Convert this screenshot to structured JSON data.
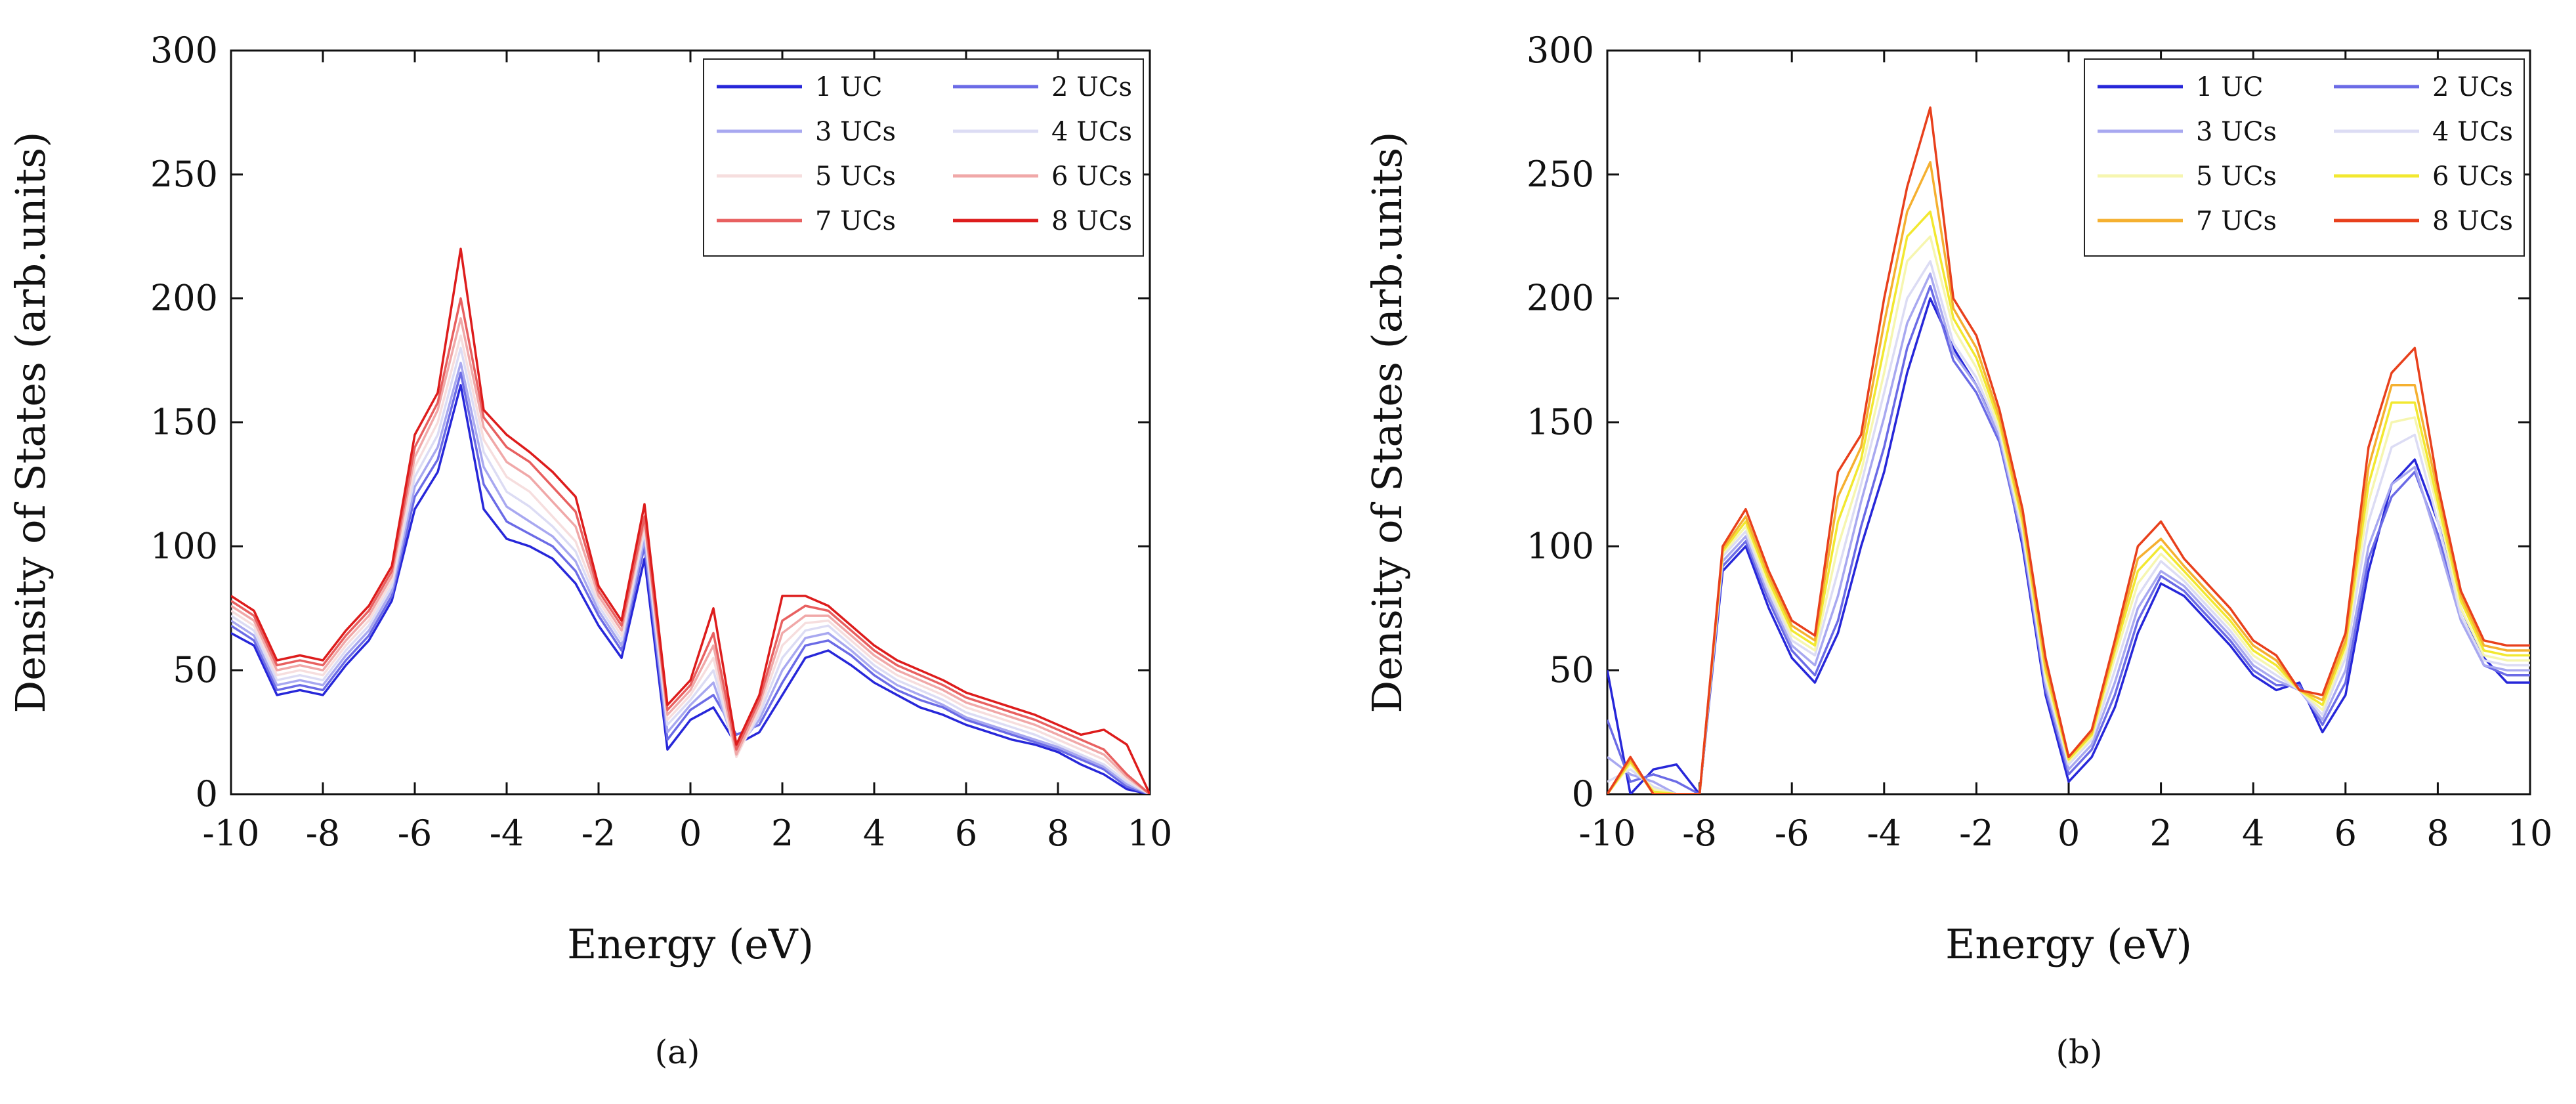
{
  "chart_data": [
    {
      "type": "line",
      "panel_label": "(a)",
      "xlabel": "Energy (eV)",
      "ylabel": "Density of States (arb.units)",
      "xlim": [
        -10,
        10
      ],
      "ylim": [
        0,
        300
      ],
      "xticks": [
        -10,
        -8,
        -6,
        -4,
        -2,
        0,
        2,
        4,
        6,
        8,
        10
      ],
      "yticks": [
        0,
        50,
        100,
        150,
        200,
        250,
        300
      ],
      "legend_position": "top-right",
      "x": [
        -10,
        -9.5,
        -9,
        -8.5,
        -8,
        -7.5,
        -7,
        -6.5,
        -6,
        -5.5,
        -5,
        -4.5,
        -4,
        -3.5,
        -3,
        -2.5,
        -2,
        -1.5,
        -1,
        -0.5,
        0,
        0.5,
        1,
        1.5,
        2,
        2.5,
        3,
        3.5,
        4,
        4.5,
        5,
        5.5,
        6,
        6.5,
        7,
        7.5,
        8,
        8.5,
        9,
        9.5,
        10
      ],
      "series": [
        {
          "name": "1 UC",
          "color": "#2727d9",
          "values": [
            65,
            60,
            40,
            42,
            40,
            52,
            62,
            78,
            115,
            130,
            165,
            115,
            103,
            100,
            95,
            85,
            68,
            55,
            95,
            18,
            30,
            35,
            20,
            25,
            40,
            55,
            58,
            52,
            45,
            40,
            35,
            32,
            28,
            25,
            22,
            20,
            17,
            12,
            8,
            2,
            0
          ]
        },
        {
          "name": "2 UCs",
          "color": "#6b6be6",
          "values": [
            68,
            62,
            42,
            44,
            42,
            54,
            64,
            80,
            120,
            135,
            170,
            125,
            110,
            105,
            100,
            90,
            72,
            58,
            100,
            22,
            34,
            40,
            24,
            28,
            45,
            60,
            62,
            56,
            48,
            42,
            38,
            35,
            30,
            27,
            24,
            21,
            18,
            14,
            10,
            3,
            0
          ]
        },
        {
          "name": "3 UCs",
          "color": "#a8a8f0",
          "values": [
            70,
            64,
            44,
            46,
            44,
            56,
            66,
            82,
            124,
            140,
            174,
            132,
            116,
            110,
            104,
            94,
            74,
            60,
            103,
            25,
            36,
            45,
            18,
            30,
            50,
            63,
            65,
            58,
            50,
            44,
            40,
            36,
            31,
            28,
            25,
            22,
            19,
            15,
            11,
            4,
            0
          ]
        },
        {
          "name": "4 UCs",
          "color": "#dcdcf4",
          "values": [
            72,
            66,
            46,
            48,
            46,
            58,
            68,
            84,
            128,
            145,
            180,
            138,
            122,
            116,
            108,
            98,
            76,
            62,
            106,
            28,
            38,
            50,
            16,
            32,
            55,
            66,
            68,
            60,
            52,
            46,
            42,
            38,
            33,
            30,
            27,
            24,
            20,
            16,
            12,
            5,
            0
          ]
        },
        {
          "name": "5 UCs",
          "color": "#f6dede",
          "values": [
            74,
            68,
            48,
            50,
            48,
            60,
            70,
            86,
            132,
            150,
            185,
            143,
            128,
            122,
            112,
            102,
            78,
            64,
            108,
            30,
            40,
            55,
            15,
            34,
            60,
            69,
            70,
            62,
            54,
            48,
            44,
            40,
            35,
            32,
            29,
            26,
            22,
            18,
            14,
            6,
            0
          ]
        },
        {
          "name": "6 UCs",
          "color": "#f0a8a8",
          "values": [
            76,
            70,
            50,
            52,
            50,
            62,
            72,
            88,
            136,
            155,
            192,
            148,
            134,
            128,
            118,
            108,
            80,
            66,
            110,
            32,
            42,
            60,
            16,
            36,
            65,
            72,
            72,
            64,
            56,
            50,
            46,
            42,
            37,
            34,
            31,
            28,
            24,
            20,
            16,
            7,
            0
          ]
        },
        {
          "name": "7 UCs",
          "color": "#e86060",
          "values": [
            78,
            72,
            52,
            54,
            52,
            64,
            74,
            90,
            140,
            158,
            200,
            152,
            140,
            134,
            124,
            114,
            82,
            68,
            112,
            34,
            44,
            65,
            18,
            38,
            70,
            76,
            74,
            66,
            58,
            52,
            48,
            44,
            39,
            36,
            33,
            30,
            26,
            22,
            18,
            8,
            0
          ]
        },
        {
          "name": "8 UCs",
          "color": "#dd1c1c",
          "values": [
            80,
            74,
            54,
            56,
            54,
            66,
            76,
            92,
            145,
            162,
            220,
            155,
            145,
            138,
            130,
            120,
            84,
            70,
            117,
            36,
            46,
            75,
            20,
            40,
            80,
            80,
            76,
            68,
            60,
            54,
            50,
            46,
            41,
            38,
            35,
            32,
            28,
            24,
            26,
            20,
            0
          ]
        }
      ]
    },
    {
      "type": "line",
      "panel_label": "(b)",
      "xlabel": "Energy (eV)",
      "ylabel": "Density of States (arb.units)",
      "xlim": [
        -10,
        10
      ],
      "ylim": [
        0,
        300
      ],
      "xticks": [
        -10,
        -8,
        -6,
        -4,
        -2,
        0,
        2,
        4,
        6,
        8,
        10
      ],
      "yticks": [
        0,
        50,
        100,
        150,
        200,
        250,
        300
      ],
      "legend_position": "top-right",
      "x": [
        -10,
        -9.5,
        -9,
        -8.5,
        -8,
        -7.5,
        -7,
        -6.5,
        -6,
        -5.5,
        -5,
        -4.5,
        -4,
        -3.5,
        -3,
        -2.5,
        -2,
        -1.5,
        -1,
        -0.5,
        0,
        0.5,
        1,
        1.5,
        2,
        2.5,
        3,
        3.5,
        4,
        4.5,
        5,
        5.5,
        6,
        6.5,
        7,
        7.5,
        8,
        8.5,
        9,
        9.5,
        10
      ],
      "series": [
        {
          "name": "1 UC",
          "color": "#2727d9",
          "values": [
            50,
            0,
            10,
            12,
            0,
            90,
            100,
            75,
            55,
            45,
            65,
            100,
            130,
            170,
            200,
            180,
            165,
            145,
            100,
            40,
            5,
            15,
            35,
            65,
            85,
            80,
            70,
            60,
            48,
            42,
            45,
            25,
            40,
            90,
            125,
            135,
            110,
            75,
            55,
            45,
            45
          ]
        },
        {
          "name": "2 UCs",
          "color": "#6b6be6",
          "values": [
            30,
            5,
            8,
            5,
            0,
            92,
            102,
            78,
            58,
            48,
            70,
            108,
            140,
            180,
            205,
            175,
            162,
            142,
            102,
            42,
            8,
            18,
            40,
            70,
            88,
            82,
            72,
            62,
            50,
            44,
            44,
            28,
            45,
            95,
            120,
            130,
            105,
            72,
            52,
            48,
            48
          ]
        },
        {
          "name": "3 UCs",
          "color": "#a8a8f0",
          "values": [
            15,
            8,
            5,
            0,
            0,
            94,
            104,
            80,
            60,
            52,
            80,
            118,
            152,
            190,
            210,
            178,
            165,
            144,
            104,
            44,
            10,
            20,
            45,
            75,
            90,
            84,
            74,
            64,
            52,
            46,
            42,
            30,
            50,
            100,
            125,
            132,
            102,
            70,
            52,
            50,
            50
          ]
        },
        {
          "name": "4 UCs",
          "color": "#dcdcf4",
          "values": [
            5,
            10,
            3,
            0,
            0,
            96,
            106,
            82,
            62,
            56,
            90,
            125,
            162,
            200,
            215,
            182,
            168,
            146,
            106,
            46,
            12,
            22,
            50,
            80,
            94,
            86,
            76,
            66,
            54,
            48,
            42,
            32,
            55,
            110,
            140,
            145,
            110,
            72,
            54,
            52,
            52
          ]
        },
        {
          "name": "5 UCs",
          "color": "#f6f6b0",
          "values": [
            0,
            12,
            2,
            0,
            0,
            97,
            108,
            84,
            64,
            58,
            100,
            130,
            170,
            215,
            225,
            188,
            172,
            148,
            108,
            48,
            13,
            23,
            55,
            85,
            97,
            88,
            78,
            68,
            56,
            50,
            42,
            34,
            58,
            118,
            150,
            152,
            115,
            75,
            56,
            54,
            54
          ]
        },
        {
          "name": "6 UCs",
          "color": "#f2e830",
          "values": [
            0,
            13,
            1,
            0,
            0,
            98,
            110,
            86,
            66,
            60,
            110,
            135,
            180,
            225,
            235,
            192,
            176,
            150,
            110,
            50,
            14,
            24,
            58,
            90,
            100,
            90,
            80,
            70,
            58,
            52,
            42,
            36,
            60,
            125,
            158,
            158,
            118,
            78,
            58,
            56,
            56
          ]
        },
        {
          "name": "7 UCs",
          "color": "#f5b030",
          "values": [
            0,
            14,
            0,
            0,
            0,
            99,
            112,
            88,
            68,
            62,
            120,
            140,
            190,
            235,
            255,
            196,
            180,
            152,
            112,
            52,
            15,
            25,
            60,
            95,
            103,
            92,
            82,
            72,
            60,
            54,
            42,
            38,
            62,
            132,
            165,
            165,
            122,
            80,
            60,
            58,
            58
          ]
        },
        {
          "name": "8 UCs",
          "color": "#e8401c",
          "values": [
            0,
            15,
            0,
            0,
            0,
            100,
            115,
            90,
            70,
            64,
            130,
            145,
            200,
            245,
            277,
            200,
            185,
            155,
            115,
            55,
            15,
            26,
            62,
            100,
            110,
            95,
            85,
            75,
            62,
            56,
            42,
            40,
            65,
            140,
            170,
            180,
            125,
            82,
            62,
            60,
            60
          ]
        }
      ]
    }
  ]
}
